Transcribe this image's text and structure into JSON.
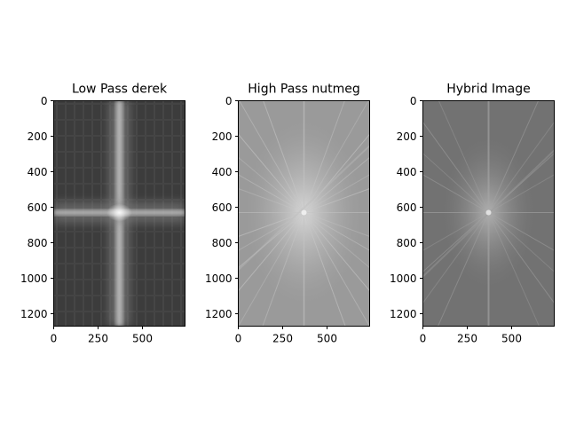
{
  "chart_data": [
    {
      "type": "heatmap",
      "title": "Low Pass derek",
      "xlim": [
        0,
        740
      ],
      "ylim": [
        1270,
        0
      ],
      "xticks": [
        "0",
        "250",
        "500"
      ],
      "xtick_values": [
        0,
        250,
        500
      ],
      "yticks": [
        "0",
        "200",
        "400",
        "600",
        "800",
        "1000",
        "1200"
      ],
      "ytick_values": [
        0,
        200,
        400,
        600,
        800,
        1000,
        1200
      ],
      "colormap": "grayscale",
      "center": [
        370,
        630
      ],
      "background": "#3b3b3b",
      "grid": false
    },
    {
      "type": "heatmap",
      "title": "High Pass nutmeg",
      "xlim": [
        0,
        740
      ],
      "ylim": [
        1270,
        0
      ],
      "xticks": [
        "0",
        "250",
        "500"
      ],
      "xtick_values": [
        0,
        250,
        500
      ],
      "yticks": [
        "0",
        "200",
        "400",
        "600",
        "800",
        "1000",
        "1200"
      ],
      "ytick_values": [
        0,
        200,
        400,
        600,
        800,
        1000,
        1200
      ],
      "colormap": "grayscale",
      "center": [
        370,
        630
      ],
      "background": "#9a9a9a",
      "grid": false
    },
    {
      "type": "heatmap",
      "title": "Hybrid Image",
      "xlim": [
        0,
        740
      ],
      "ylim": [
        1270,
        0
      ],
      "xticks": [
        "0",
        "250",
        "500"
      ],
      "xtick_values": [
        0,
        250,
        500
      ],
      "yticks": [
        "0",
        "200",
        "400",
        "600",
        "800",
        "1000",
        "1200"
      ],
      "ytick_values": [
        0,
        200,
        400,
        600,
        800,
        1000,
        1200
      ],
      "colormap": "grayscale",
      "center": [
        370,
        630
      ],
      "background": "#727272",
      "grid": false
    }
  ]
}
